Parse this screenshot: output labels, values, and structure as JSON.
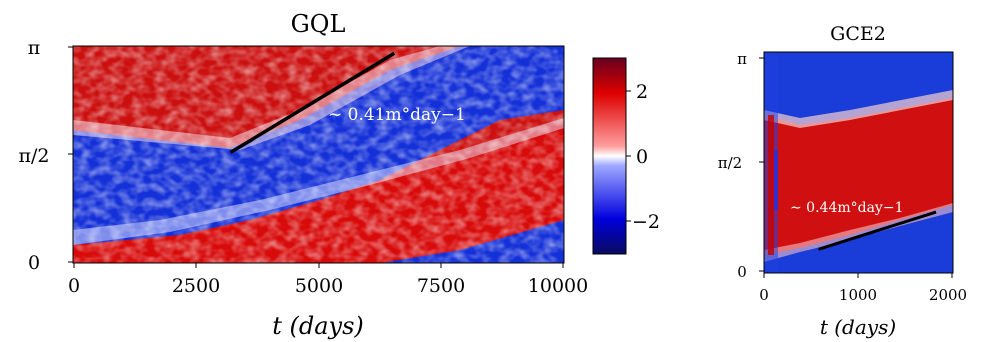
{
  "colors": {
    "red": "#cc0000",
    "blue": "#0018c0",
    "white": "#ffffff",
    "dark_red": "#67001f",
    "dark_blue": "#0a0a60"
  },
  "chart_data": [
    {
      "type": "heatmap",
      "title": "GQL",
      "xlabel": "t (days)",
      "ylabel": "",
      "xlim": [
        0,
        10000
      ],
      "ylim": [
        0,
        3.14159
      ],
      "x_ticks": [
        0,
        2500,
        5000,
        7500,
        10000
      ],
      "x_tick_labels": [
        "0",
        "2500",
        "5000",
        "7500",
        "10000"
      ],
      "y_ticks": [
        0,
        1.5708,
        3.14159
      ],
      "y_tick_labels": [
        "0",
        "π/2",
        "π"
      ],
      "annotation": {
        "text": "∼ 0.41m°day−1",
        "line": {
          "x": [
            3200,
            6550
          ],
          "y": [
            1.6,
            3.05
          ]
        }
      },
      "colorbar": {
        "range": [
          -3,
          3
        ],
        "ticks": [
          2,
          0,
          -2
        ],
        "tick_labels": [
          "2",
          "0",
          "−2"
        ],
        "cmap": "seismic"
      }
    },
    {
      "type": "heatmap",
      "title": "GCE2",
      "xlabel": "t (days)",
      "ylabel": "",
      "xlim": [
        0,
        2000
      ],
      "ylim": [
        0,
        3.14159
      ],
      "x_ticks": [
        0,
        1000,
        2000
      ],
      "x_tick_labels": [
        "0",
        "1000",
        "2000"
      ],
      "y_ticks": [
        0,
        1.5708,
        3.14159
      ],
      "y_tick_labels": [
        "0",
        "π/2",
        "π"
      ],
      "annotation": {
        "text": "∼ 0.44m°day−1",
        "line": {
          "x": [
            580,
            1830
          ],
          "y": [
            0.32,
            0.87
          ]
        }
      }
    }
  ]
}
